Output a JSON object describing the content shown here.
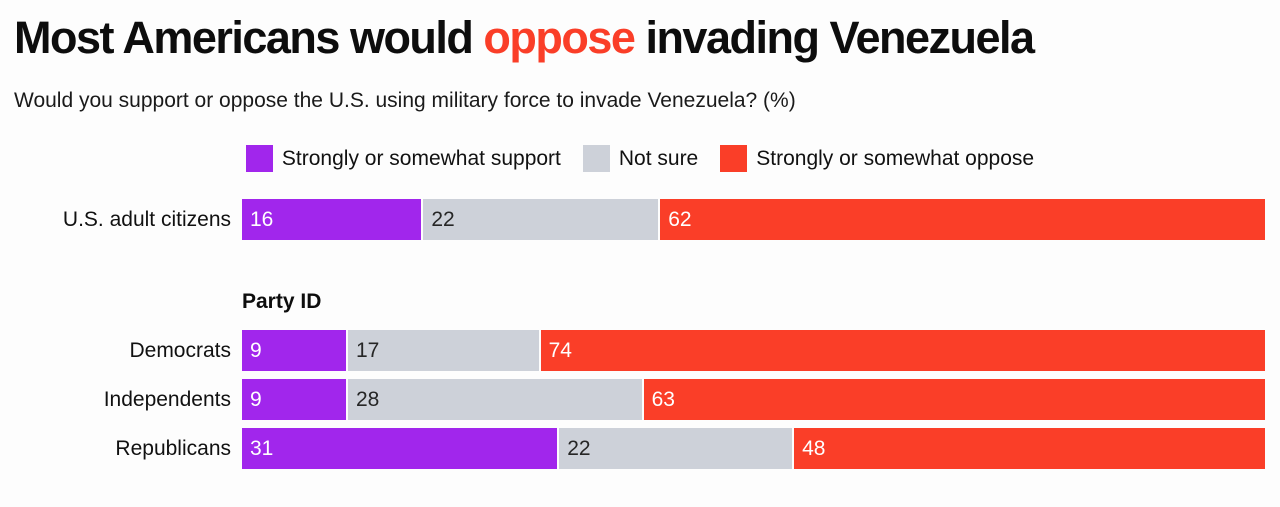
{
  "header": {
    "title_prefix": "Most Americans would ",
    "title_highlight": "oppose",
    "title_suffix": " invading Venezuela",
    "highlight_color": "#fa3e28",
    "subtitle": "Would you support or oppose the U.S. using military force to invade Venezuela? (%)"
  },
  "legend": {
    "items": [
      {
        "label": "Strongly or somewhat support",
        "color": "#a126ec"
      },
      {
        "label": "Not sure",
        "color": "#cdd1d9"
      },
      {
        "label": "Strongly or somewhat oppose",
        "color": "#fa3e28"
      }
    ]
  },
  "chart_data": {
    "type": "bar",
    "stacked": true,
    "orientation": "horizontal",
    "unit": "%",
    "xlim": [
      0,
      100
    ],
    "title": "Most Americans would oppose invading Venezuela",
    "subtitle": "Would you support or oppose the U.S. using military force to invade Venezuela? (%)",
    "legend_position": "top-center",
    "series": [
      {
        "name": "Strongly or somewhat support",
        "key": "support",
        "color": "#a126ec",
        "value_label_color": "#ffffff"
      },
      {
        "name": "Not sure",
        "key": "not-sure",
        "color": "#cdd1d9",
        "value_label_color": "#262626"
      },
      {
        "name": "Strongly or somewhat oppose",
        "key": "oppose",
        "color": "#fa3e28",
        "value_label_color": "#ffffff"
      }
    ],
    "groups": [
      {
        "heading": "",
        "rows": [
          {
            "label": "U.S. adult citizens",
            "values": [
              16,
              22,
              62
            ]
          }
        ]
      },
      {
        "heading": "Party ID",
        "rows": [
          {
            "label": "Democrats",
            "values": [
              9,
              17,
              74
            ]
          },
          {
            "label": "Independents",
            "values": [
              9,
              28,
              63
            ]
          },
          {
            "label": "Republicans",
            "values": [
              31,
              22,
              48
            ]
          }
        ]
      }
    ]
  }
}
